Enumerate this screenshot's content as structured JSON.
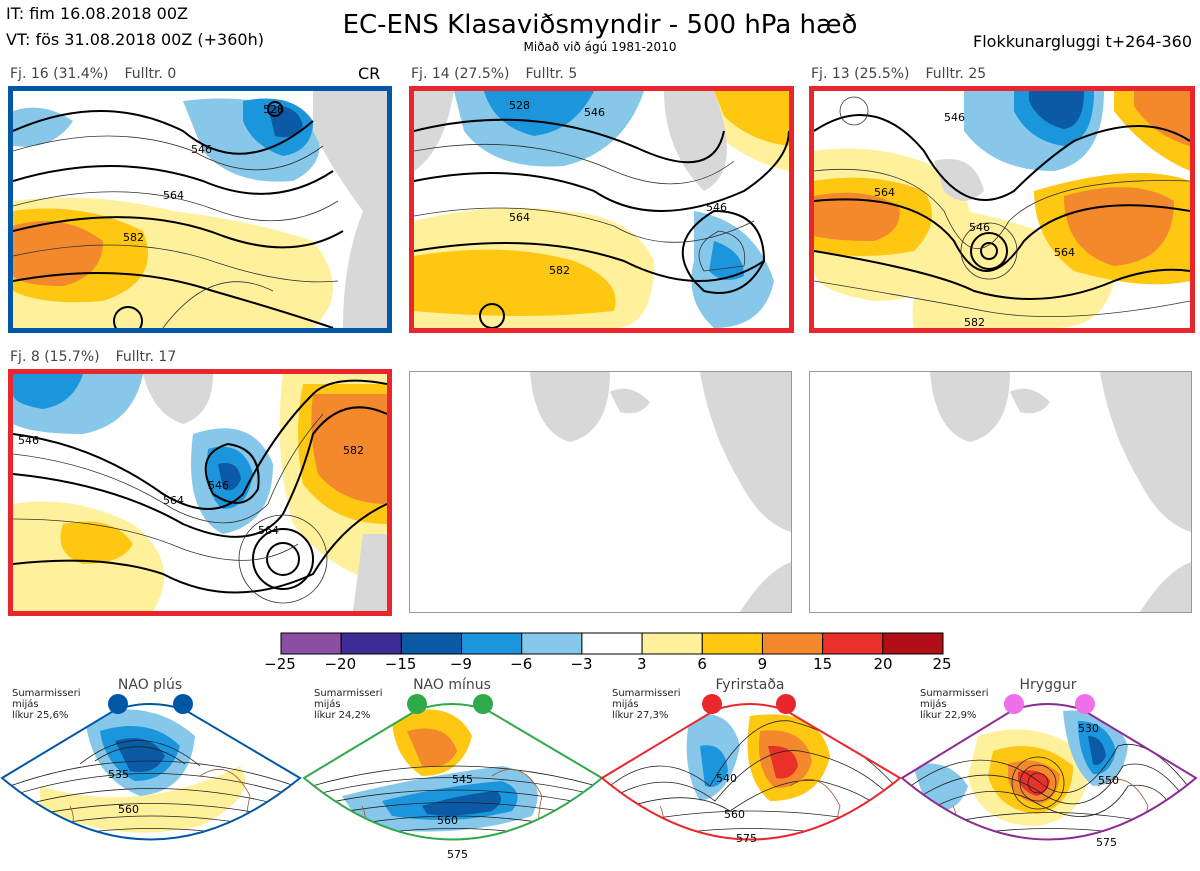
{
  "header": {
    "it": "IT: fim 16.08.2018 00Z",
    "vt": "VT: fös 31.08.2018 00Z  (+360h)",
    "title": "EC-ENS Klasaviðsmyndir - 500 hPa hæð",
    "subtitle": "Miðað við ágú 1981-2010",
    "window": "Flokkunargluggi t+264-360"
  },
  "panels": [
    {
      "label": "Fj. 16 (31.4%)",
      "fulltr": "Fulltr. 0",
      "tag": "CR",
      "border": "#0057a6",
      "contours": [
        "546",
        "564",
        "582",
        "528"
      ]
    },
    {
      "label": "Fj. 14 (27.5%)",
      "fulltr": "Fulltr. 5",
      "border": "#e8262b",
      "contours": [
        "528",
        "546",
        "564",
        "582",
        "546"
      ]
    },
    {
      "label": "Fj. 13 (25.5%)",
      "fulltr": "Fulltr. 25",
      "border": "#e8262b",
      "contours": [
        "546",
        "564",
        "546",
        "582",
        "564"
      ]
    },
    {
      "label": "Fj. 8 (15.7%)",
      "fulltr": "Fulltr. 17",
      "border": "#e8262b",
      "contours": [
        "546",
        "564",
        "564",
        "582",
        "546"
      ]
    }
  ],
  "colorbar": {
    "ticks": [
      "−25",
      "−20",
      "−15",
      "−9",
      "−6",
      "−3",
      "3",
      "6",
      "9",
      "15",
      "20",
      "25"
    ],
    "colors": [
      "#8a4fa3",
      "#3d2c94",
      "#0b5aa6",
      "#1b96dd",
      "#86c7ea",
      "#ffffff",
      "#fff09c",
      "#fec712",
      "#f3882d",
      "#e9312a",
      "#b10f16"
    ]
  },
  "regimes": [
    {
      "name": "NAO plús",
      "season": "Sumarmisseri",
      "avg": "mijás",
      "prob": "líkur 25,6%",
      "color": "#0057a6",
      "dot": "#0057a6",
      "contours": [
        "535",
        "560"
      ]
    },
    {
      "name": "NAO mínus",
      "season": "Sumarmisseri",
      "avg": "mijás",
      "prob": "líkur 24,2%",
      "color": "#2eaa4a",
      "dot": "#2eaa4a",
      "contours": [
        "545",
        "560",
        "575"
      ]
    },
    {
      "name": "Fyrirstaða",
      "season": "Sumarmisseri",
      "avg": "mijás",
      "prob": "líkur 27,3%",
      "color": "#e8262b",
      "dot": "#e8262b",
      "contours": [
        "540",
        "560",
        "575"
      ]
    },
    {
      "name": "Hryggur",
      "season": "Sumarmisseri",
      "avg": "mijás",
      "prob": "líkur 22,9%",
      "color": "#8b2b94",
      "dot": "#ee6fe8",
      "contours": [
        "530",
        "550",
        "575"
      ]
    }
  ]
}
